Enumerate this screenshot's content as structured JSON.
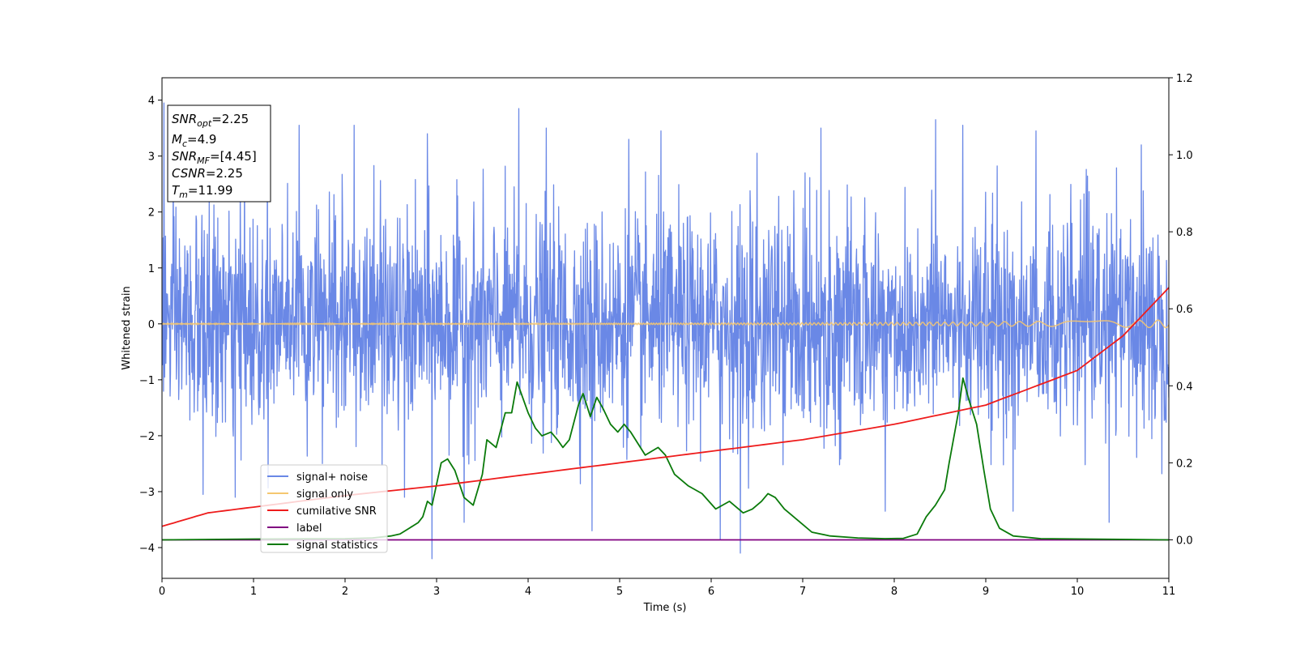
{
  "chart_data": {
    "type": "line",
    "xlabel": "Time (s)",
    "ylabel": "Whitened strain",
    "xlim": [
      0,
      11
    ],
    "ylim": [
      -4.55,
      4.4
    ],
    "y2lim": [
      -0.1,
      1.2
    ],
    "x_ticks": [
      "0",
      "1",
      "2",
      "3",
      "4",
      "5",
      "6",
      "7",
      "8",
      "9",
      "10",
      "11"
    ],
    "y_ticks": [
      "−4",
      "−3",
      "−2",
      "−1",
      "0",
      "1",
      "2",
      "3",
      "4"
    ],
    "y2_ticks": [
      "0.0",
      "0.2",
      "0.4",
      "0.6",
      "0.8",
      "1.0",
      "1.2"
    ],
    "grid": false,
    "legend_position": "lower-left",
    "info_box": {
      "lines": [
        {
          "sym": "SNR",
          "sub": "opt",
          "val": "=2.25"
        },
        {
          "sym": "M",
          "sub": "c",
          "val": "=4.9"
        },
        {
          "sym": "SNR",
          "sub": "MF",
          "val": "=[4.45]"
        },
        {
          "sym": "CSNR",
          "sub": "",
          "val": "=2.25"
        },
        {
          "sym": "T",
          "sub": "m",
          "val": "=11.99"
        }
      ]
    },
    "series": [
      {
        "name": "signal+ noise",
        "color": "#6a88e6",
        "axis": "left",
        "kind": "noise",
        "sigma": 0.95,
        "peaks": [
          {
            "x": 0.02,
            "y": 3.95
          },
          {
            "x": 0.9,
            "y": 3.4
          },
          {
            "x": 1.15,
            "y": 3.2
          },
          {
            "x": 1.5,
            "y": 3.55
          },
          {
            "x": 2.1,
            "y": 3.55
          },
          {
            "x": 2.9,
            "y": 3.4
          },
          {
            "x": 3.9,
            "y": 3.85
          },
          {
            "x": 4.2,
            "y": 3.5
          },
          {
            "x": 5.1,
            "y": 3.3
          },
          {
            "x": 5.45,
            "y": 3.45
          },
          {
            "x": 6.5,
            "y": 3.05
          },
          {
            "x": 7.2,
            "y": 3.5
          },
          {
            "x": 8.45,
            "y": 3.65
          },
          {
            "x": 8.75,
            "y": 3.55
          },
          {
            "x": 9.55,
            "y": 3.45
          },
          {
            "x": 10.7,
            "y": 3.2
          },
          {
            "x": 0.45,
            "y": -3.05
          },
          {
            "x": 0.8,
            "y": -3.1
          },
          {
            "x": 2.65,
            "y": -3.1
          },
          {
            "x": 2.95,
            "y": -4.2
          },
          {
            "x": 3.3,
            "y": -3.55
          },
          {
            "x": 4.7,
            "y": -3.7
          },
          {
            "x": 6.1,
            "y": -3.85
          },
          {
            "x": 6.32,
            "y": -4.1
          },
          {
            "x": 7.9,
            "y": -3.35
          },
          {
            "x": 9.3,
            "y": -3.35
          },
          {
            "x": 10.35,
            "y": -3.55
          }
        ]
      },
      {
        "name": "signal only",
        "color": "#f5c770",
        "axis": "left",
        "kind": "chirp",
        "amp_start": 0.01,
        "amp_end": 0.07
      },
      {
        "name": "cumilative SNR",
        "color": "#ee1c1c",
        "axis": "right",
        "kind": "line",
        "x": [
          0,
          0.5,
          1,
          2,
          3,
          4,
          5,
          6,
          7,
          8,
          9,
          10,
          10.5,
          11
        ],
        "y": [
          0.035,
          0.07,
          0.085,
          0.115,
          0.14,
          0.17,
          0.2,
          0.23,
          0.26,
          0.3,
          0.35,
          0.44,
          0.53,
          0.655
        ]
      },
      {
        "name": "label",
        "color": "#800080",
        "axis": "right",
        "kind": "line",
        "x": [
          0,
          11
        ],
        "y": [
          0,
          0
        ]
      },
      {
        "name": "signal statistics",
        "color": "#0a7a0a",
        "axis": "right",
        "kind": "line",
        "x": [
          0,
          1,
          2,
          2.3,
          2.5,
          2.6,
          2.7,
          2.8,
          2.85,
          2.9,
          2.95,
          3.05,
          3.12,
          3.2,
          3.3,
          3.4,
          3.5,
          3.55,
          3.65,
          3.75,
          3.82,
          3.88,
          4.0,
          4.08,
          4.15,
          4.25,
          4.32,
          4.38,
          4.45,
          4.55,
          4.6,
          4.68,
          4.75,
          4.82,
          4.9,
          4.98,
          5.05,
          5.12,
          5.2,
          5.28,
          5.35,
          5.42,
          5.5,
          5.6,
          5.75,
          5.9,
          6.05,
          6.2,
          6.35,
          6.45,
          6.55,
          6.62,
          6.7,
          6.8,
          6.9,
          7.0,
          7.1,
          7.3,
          7.6,
          7.9,
          8.1,
          8.25,
          8.35,
          8.45,
          8.55,
          8.6,
          8.7,
          8.75,
          8.82,
          8.9,
          8.98,
          9.05,
          9.15,
          9.3,
          9.6,
          11
        ],
        "y": [
          0,
          0.002,
          0.003,
          0.005,
          0.01,
          0.015,
          0.03,
          0.045,
          0.06,
          0.1,
          0.09,
          0.2,
          0.21,
          0.18,
          0.11,
          0.09,
          0.17,
          0.26,
          0.24,
          0.33,
          0.33,
          0.41,
          0.33,
          0.29,
          0.27,
          0.28,
          0.26,
          0.24,
          0.26,
          0.35,
          0.38,
          0.32,
          0.37,
          0.34,
          0.3,
          0.28,
          0.3,
          0.28,
          0.25,
          0.22,
          0.23,
          0.24,
          0.22,
          0.17,
          0.14,
          0.12,
          0.08,
          0.1,
          0.07,
          0.08,
          0.1,
          0.12,
          0.11,
          0.08,
          0.06,
          0.04,
          0.02,
          0.01,
          0.005,
          0.003,
          0.004,
          0.015,
          0.06,
          0.09,
          0.13,
          0.2,
          0.33,
          0.42,
          0.36,
          0.3,
          0.18,
          0.08,
          0.03,
          0.01,
          0.003,
          0
        ]
      }
    ]
  }
}
